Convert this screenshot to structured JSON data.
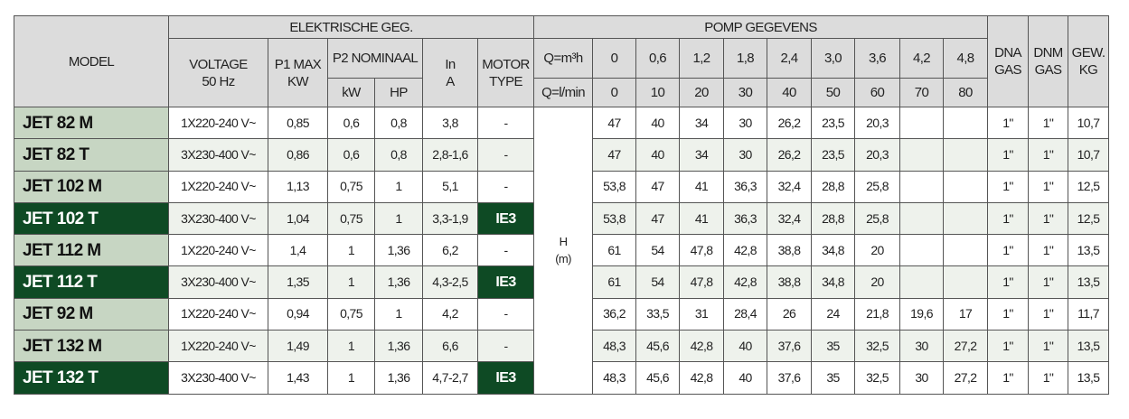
{
  "header": {
    "group_electric": "ELEKTRISCHE GEG.",
    "group_pump": "POMP GEGEVENS",
    "model": "MODEL",
    "voltage": [
      "VOLTAGE",
      "50 Hz"
    ],
    "p1": [
      "P1 MAX",
      "KW"
    ],
    "p2": "P2 NOMINAAL",
    "kw": "kW",
    "hp": "HP",
    "in": [
      "In",
      "A"
    ],
    "motor": [
      "MOTOR",
      "TYPE"
    ],
    "q_m3h": "Q=m³h",
    "q_lmin": "Q=l/min",
    "q_m3h_values": [
      "0",
      "0,6",
      "1,2",
      "1,8",
      "2,4",
      "3,0",
      "3,6",
      "4,2",
      "4,8"
    ],
    "q_lmin_values": [
      "0",
      "10",
      "20",
      "30",
      "40",
      "50",
      "60",
      "70",
      "80"
    ],
    "dna": [
      "DNA",
      "GAS"
    ],
    "dnm": [
      "DNM",
      "GAS"
    ],
    "gew": [
      "GEW.",
      "KG"
    ],
    "h": [
      "H",
      "(m)"
    ]
  },
  "rows": [
    {
      "model": "JET 82 M",
      "voltage": "1X220-240 V~",
      "p1": "0,85",
      "kw": "0,6",
      "hp": "0,8",
      "in": "3,8",
      "motor": "-",
      "heads": [
        "47",
        "40",
        "34",
        "30",
        "26,2",
        "23,5",
        "20,3",
        null,
        null
      ],
      "dna": "1\"",
      "dnm": "1\"",
      "gew": "10,7"
    },
    {
      "model": "JET 82 T",
      "voltage": "3X230-400 V~",
      "p1": "0,86",
      "kw": "0,6",
      "hp": "0,8",
      "in": "2,8-1,6",
      "motor": "-",
      "heads": [
        "47",
        "40",
        "34",
        "30",
        "26,2",
        "23,5",
        "20,3",
        null,
        null
      ],
      "dna": "1\"",
      "dnm": "1\"",
      "gew": "10,7"
    },
    {
      "model": "JET 102 M",
      "voltage": "1X220-240 V~",
      "p1": "1,13",
      "kw": "0,75",
      "hp": "1",
      "in": "5,1",
      "motor": "-",
      "heads": [
        "53,8",
        "47",
        "41",
        "36,3",
        "32,4",
        "28,8",
        "25,8",
        null,
        null
      ],
      "dna": "1\"",
      "dnm": "1\"",
      "gew": "12,5"
    },
    {
      "model": "JET 102 T",
      "voltage": "3X230-400 V~",
      "p1": "1,04",
      "kw": "0,75",
      "hp": "1",
      "in": "3,3-1,9",
      "motor": "IE3",
      "heads": [
        "53,8",
        "47",
        "41",
        "36,3",
        "32,4",
        "28,8",
        "25,8",
        null,
        null
      ],
      "dna": "1\"",
      "dnm": "1\"",
      "gew": "12,5"
    },
    {
      "model": "JET 112 M",
      "voltage": "1X220-240 V~",
      "p1": "1,4",
      "kw": "1",
      "hp": "1,36",
      "in": "6,2",
      "motor": "-",
      "heads": [
        "61",
        "54",
        "47,8",
        "42,8",
        "38,8",
        "34,8",
        "20",
        null,
        null
      ],
      "dna": "1\"",
      "dnm": "1\"",
      "gew": "13,5"
    },
    {
      "model": "JET 112 T",
      "voltage": "3X230-400 V~",
      "p1": "1,35",
      "kw": "1",
      "hp": "1,36",
      "in": "4,3-2,5",
      "motor": "IE3",
      "heads": [
        "61",
        "54",
        "47,8",
        "42,8",
        "38,8",
        "34,8",
        "20",
        null,
        null
      ],
      "dna": "1\"",
      "dnm": "1\"",
      "gew": "13,5"
    },
    {
      "model": "JET 92 M",
      "voltage": "1X220-240 V~",
      "p1": "0,94",
      "kw": "0,75",
      "hp": "1",
      "in": "4,2",
      "motor": "-",
      "heads": [
        "36,2",
        "33,5",
        "31",
        "28,4",
        "26",
        "24",
        "21,8",
        "19,6",
        "17"
      ],
      "dna": "1\"",
      "dnm": "1\"",
      "gew": "11,7"
    },
    {
      "model": "JET 132 M",
      "voltage": "1X220-240 V~",
      "p1": "1,49",
      "kw": "1",
      "hp": "1,36",
      "in": "6,6",
      "motor": "-",
      "heads": [
        "48,3",
        "45,6",
        "42,8",
        "40",
        "37,6",
        "35",
        "32,5",
        "30",
        "27,2"
      ],
      "dna": "1\"",
      "dnm": "1\"",
      "gew": "13,5"
    },
    {
      "model": "JET 132 T",
      "voltage": "3X230-400 V~",
      "p1": "1,43",
      "kw": "1",
      "hp": "1,36",
      "in": "4,7-2,7",
      "motor": "IE3",
      "heads": [
        "48,3",
        "45,6",
        "42,8",
        "40",
        "37,6",
        "35",
        "32,5",
        "30",
        "27,2"
      ],
      "dna": "1\"",
      "dnm": "1\"",
      "gew": "13,5"
    }
  ]
}
